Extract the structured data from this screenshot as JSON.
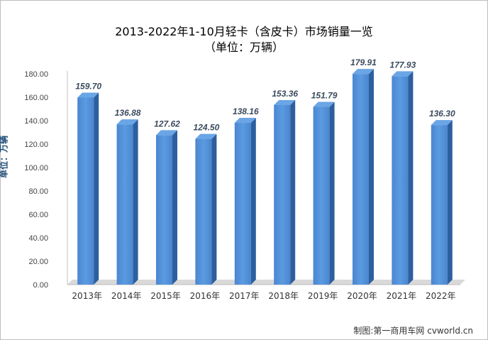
{
  "chart_data": {
    "type": "bar",
    "title": "2013-2022年1-10月轻卡（含皮卡）市场销量一览",
    "subtitle": "（单位：万辆）",
    "ylabel": "单位：万辆",
    "xlabel": "",
    "categories": [
      "2013年",
      "2014年",
      "2015年",
      "2016年",
      "2017年",
      "2018年",
      "2019年",
      "2020年",
      "2021年",
      "2022年"
    ],
    "values": [
      159.7,
      136.88,
      127.62,
      124.5,
      138.16,
      153.36,
      151.79,
      179.91,
      177.93,
      136.3
    ],
    "data_labels": [
      "159.70",
      "136.88",
      "127.62",
      "124.50",
      "138.16",
      "153.36",
      "151.79",
      "179.91",
      "177.93",
      "136.30"
    ],
    "ylim": [
      0,
      180
    ],
    "yticks": [
      "0.00",
      "20.00",
      "40.00",
      "60.00",
      "80.00",
      "100.00",
      "120.00",
      "140.00",
      "160.00",
      "180.00"
    ],
    "ytick_values": [
      0,
      20,
      40,
      60,
      80,
      100,
      120,
      140,
      160,
      180
    ],
    "grid": false,
    "legend": "none",
    "bar_color": "#4f8fd6"
  },
  "credit": "制图:第一商用车网 cvworld.cn"
}
